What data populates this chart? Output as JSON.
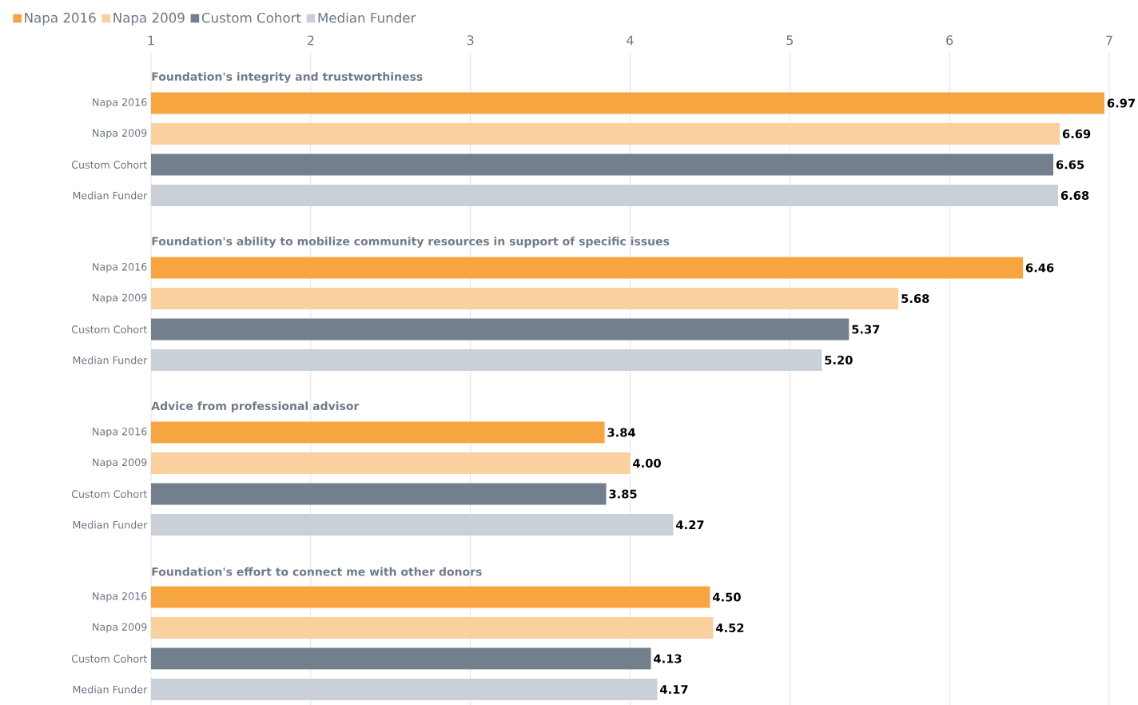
{
  "chart_data": {
    "type": "bar",
    "orientation": "horizontal",
    "categories": [
      "Foundation's integrity and trustworthiness",
      "Foundation's ability to mobilize community resources in support of specific issues",
      "Advice from professional advisor",
      "Foundation's effort to connect me with other donors"
    ],
    "series": [
      {
        "name": "Napa 2016",
        "color": "#f7a541",
        "values": [
          6.97,
          6.46,
          3.84,
          4.5
        ],
        "value_labels": [
          "6.97",
          "6.46",
          "3.84",
          "4.50"
        ]
      },
      {
        "name": "Napa 2009",
        "color": "#f9d09e",
        "values": [
          6.69,
          5.68,
          4.0,
          4.52
        ],
        "value_labels": [
          "6.69",
          "5.68",
          "4.00",
          "4.52"
        ]
      },
      {
        "name": "Custom Cohort",
        "color": "#737f8c",
        "values": [
          6.65,
          5.37,
          3.85,
          4.13
        ],
        "value_labels": [
          "6.65",
          "5.37",
          "3.85",
          "4.13"
        ]
      },
      {
        "name": "Median Funder",
        "color": "#c9d0d7",
        "values": [
          6.68,
          5.2,
          4.27,
          4.17
        ],
        "value_labels": [
          "6.68",
          "5.20",
          "4.27",
          "4.17"
        ]
      }
    ],
    "xlim": [
      1,
      7
    ],
    "xticks": [
      1,
      2,
      3,
      4,
      5,
      6,
      7
    ],
    "grid": "x",
    "legend": "top left"
  }
}
